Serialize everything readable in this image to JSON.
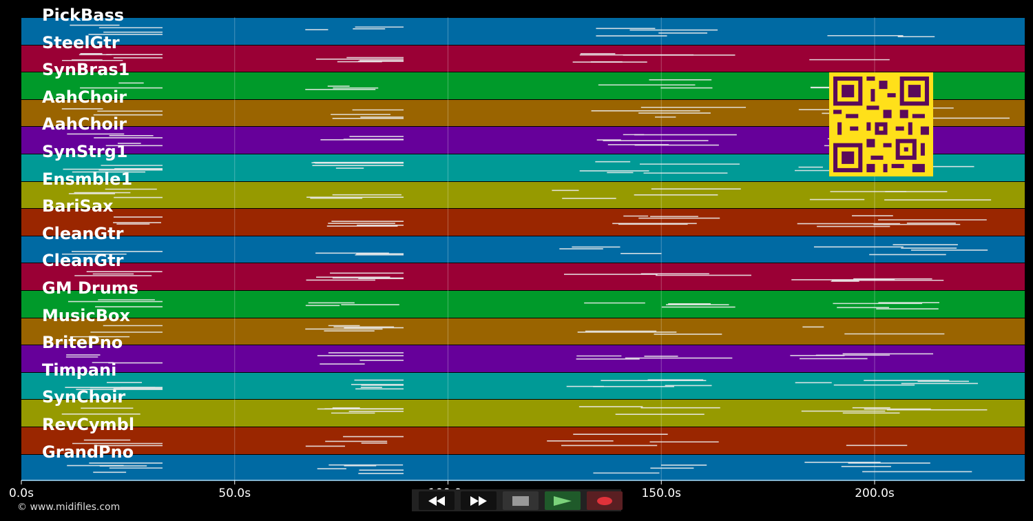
{
  "tracks": [
    {
      "name": "PickBass",
      "color": "#006aa3"
    },
    {
      "name": "SteelGtr",
      "color": "#9a0035"
    },
    {
      "name": "SynBras1",
      "color": "#009a2a"
    },
    {
      "name": "AahChoir",
      "color": "#9a6400"
    },
    {
      "name": "AahChoir",
      "color": "#66009a"
    },
    {
      "name": "SynStrg1",
      "color": "#009a96"
    },
    {
      "name": "Ensmble1",
      "color": "#969a00"
    },
    {
      "name": "BariSax",
      "color": "#9a2600"
    },
    {
      "name": "CleanGtr",
      "color": "#006aa3"
    },
    {
      "name": "CleanGtr",
      "color": "#9a0035"
    },
    {
      "name": "GM Drums",
      "color": "#009a2a"
    },
    {
      "name": "MusicBox",
      "color": "#9a6400"
    },
    {
      "name": "BritePno",
      "color": "#66009a"
    },
    {
      "name": "Timpani",
      "color": "#009a96"
    },
    {
      "name": "SynChoir",
      "color": "#969a00"
    },
    {
      "name": "RevCymbl",
      "color": "#9a2600"
    },
    {
      "name": "GrandPno",
      "color": "#006aa3"
    }
  ],
  "timeline": {
    "unit": "s",
    "ticks": [
      {
        "label": "0.0s",
        "value": 0
      },
      {
        "label": "50.0s",
        "value": 50
      },
      {
        "label": "100.0s",
        "value": 100
      },
      {
        "label": "150.0s",
        "value": 150
      },
      {
        "label": "200.0s",
        "value": 200
      }
    ]
  },
  "credit": "© www.midifiles.com",
  "controls": [
    {
      "name": "rewind-button",
      "icon": "rewind-icon"
    },
    {
      "name": "fast-forward-button",
      "icon": "fast-forward-icon"
    },
    {
      "name": "stop-button",
      "icon": "stop-icon"
    },
    {
      "name": "play-button",
      "icon": "play-icon"
    },
    {
      "name": "record-button",
      "icon": "record-icon"
    }
  ],
  "overlay": {
    "icon": "qr-code-icon",
    "color": "#ffe01a"
  }
}
